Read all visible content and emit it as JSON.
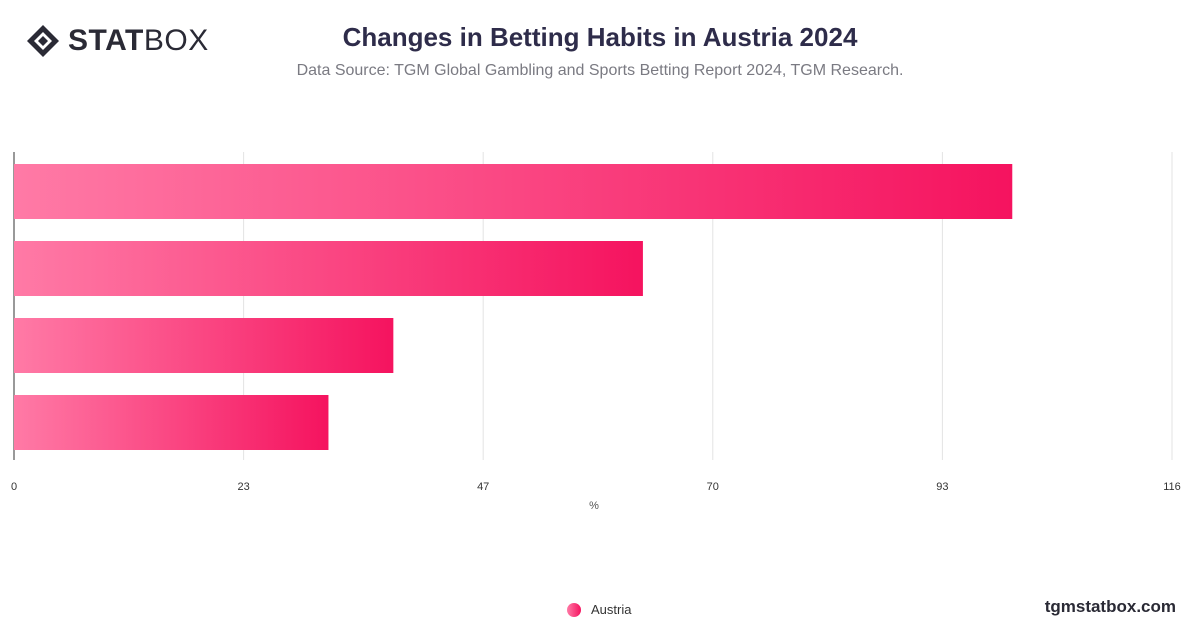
{
  "logo": {
    "bold": "STAT",
    "light": "BOX",
    "icon": "statbox-diamond-icon"
  },
  "title": "Changes in Betting Habits in Austria 2024",
  "subtitle": "Data Source: TGM Global Gambling and Sports Betting Report 2024, TGM Research.",
  "footer": "tgmstatbox.com",
  "colors": {
    "bar_start": "#ff7aa6",
    "bar_end": "#f5135f",
    "grid": "#e3e3e3",
    "axis": "#333333"
  },
  "chart_data": {
    "type": "bar",
    "orientation": "horizontal",
    "categories": [
      "",
      "",
      "",
      ""
    ],
    "series": [
      {
        "name": "Austria",
        "values": [
          100,
          63,
          38,
          31.5
        ]
      }
    ],
    "xlabel": "%",
    "xlim": [
      0,
      116
    ],
    "ticks": [
      0,
      23,
      47,
      70,
      93,
      116
    ],
    "grid": true,
    "legend_position": "bottom-center"
  }
}
